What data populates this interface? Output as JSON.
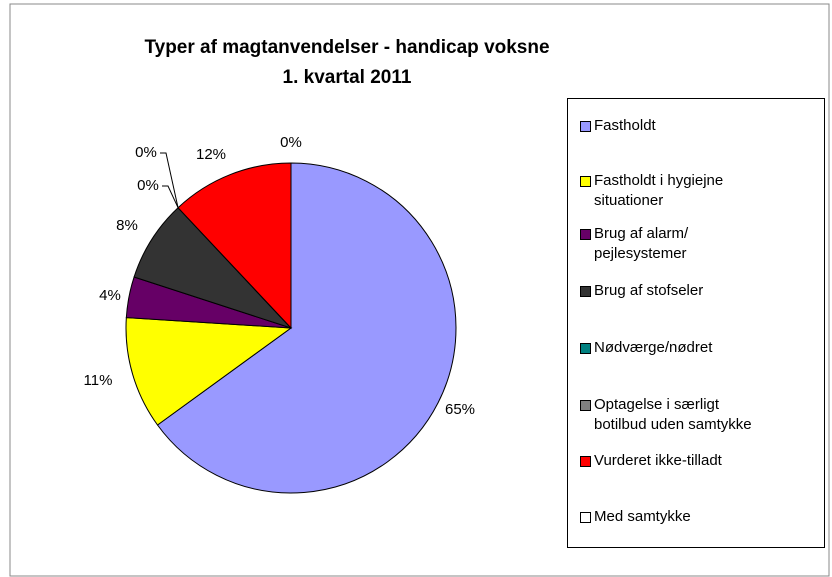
{
  "chart_data": {
    "type": "pie",
    "title": "Typer af magtanvendelser - handicap voksne",
    "subtitle": "1. kvartal 2011",
    "categories": [
      "Fastholdt",
      "Fastholdt i hygiejne\nsituationer",
      "Brug af alarm/\npejlesystemer",
      "Brug af stofseler",
      "Nødværge/nødret",
      "Optagelse i særligt\nbotilbud uden samtykke",
      "Vurderet ikke-tilladt",
      "Med samtykke"
    ],
    "values": [
      65,
      11,
      4,
      8,
      0,
      0,
      12,
      0
    ],
    "value_labels": [
      "65%",
      "11%",
      "4%",
      "8%",
      "0%",
      "0%",
      "12%",
      "0%"
    ],
    "colors": [
      "#9999ff",
      "#ffff00",
      "#660066",
      "#333333",
      "#008080",
      "#808080",
      "#ff0000",
      "#ffffff"
    ],
    "legend": "right"
  }
}
